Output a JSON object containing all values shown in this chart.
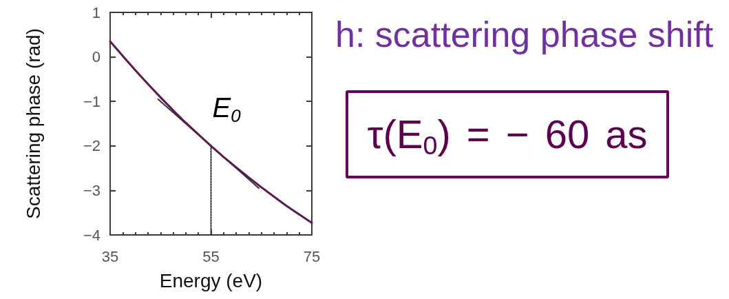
{
  "chart_data": {
    "type": "line",
    "xlabel": "Energy (eV)",
    "ylabel": "Scattering phase (rad)",
    "xlim": [
      35,
      75
    ],
    "ylim": [
      -4,
      1
    ],
    "xticks": [
      35,
      {
        "value": 37.5,
        "label": null
      },
      {
        "value": 40,
        "label": null
      },
      {
        "value": 42.5,
        "label": null
      },
      {
        "value": 45,
        "label": null
      },
      {
        "value": 47.5,
        "label": null
      },
      {
        "value": 50,
        "label": null
      },
      {
        "value": 52.5,
        "label": null
      },
      55,
      {
        "value": 57.5,
        "label": null
      },
      {
        "value": 60,
        "label": null
      },
      {
        "value": 62.5,
        "label": null
      },
      {
        "value": 65,
        "label": null
      },
      {
        "value": 67.5,
        "label": null
      },
      {
        "value": 70,
        "label": null
      },
      {
        "value": 72.5,
        "label": null
      },
      75
    ],
    "yticks": [
      {
        "value": -4,
        "label": "−4"
      },
      {
        "value": -3,
        "label": "−3"
      },
      {
        "value": -2,
        "label": "−2"
      },
      {
        "value": -1,
        "label": "−1"
      },
      0,
      1
    ],
    "series": [
      {
        "color": "#5a1a4f",
        "x": [
          35,
          37.5,
          40,
          42.5,
          45,
          47.5,
          50,
          52.5,
          55,
          57.5,
          60,
          62.5,
          65,
          67.5,
          70,
          72.5,
          75
        ],
        "values": [
          0.35,
          0.02,
          -0.3,
          -0.61,
          -0.91,
          -1.2,
          -1.48,
          -1.74,
          -2.0,
          -2.25,
          -2.48,
          -2.71,
          -2.93,
          -3.14,
          -3.35,
          -3.54,
          -3.73
        ]
      },
      {
        "color": "#333333",
        "x": [
          44.5,
          55,
          64.5
        ],
        "values": [
          -0.95,
          -2.0,
          -2.95
        ]
      },
      {
        "color": "#333333",
        "line_style": "dotted",
        "x": [
          55,
          55
        ],
        "values": [
          -4,
          -2
        ]
      }
    ],
    "annotations": [
      "h: scattering phase shift",
      "τ(E$_{0}$) = − 60 as",
      {
        "text": "E$_{0}$",
        "x": 55,
        "y": -2
      }
    ],
    "marker": "none",
    "line_style": "solid",
    "grid": false
  }
}
